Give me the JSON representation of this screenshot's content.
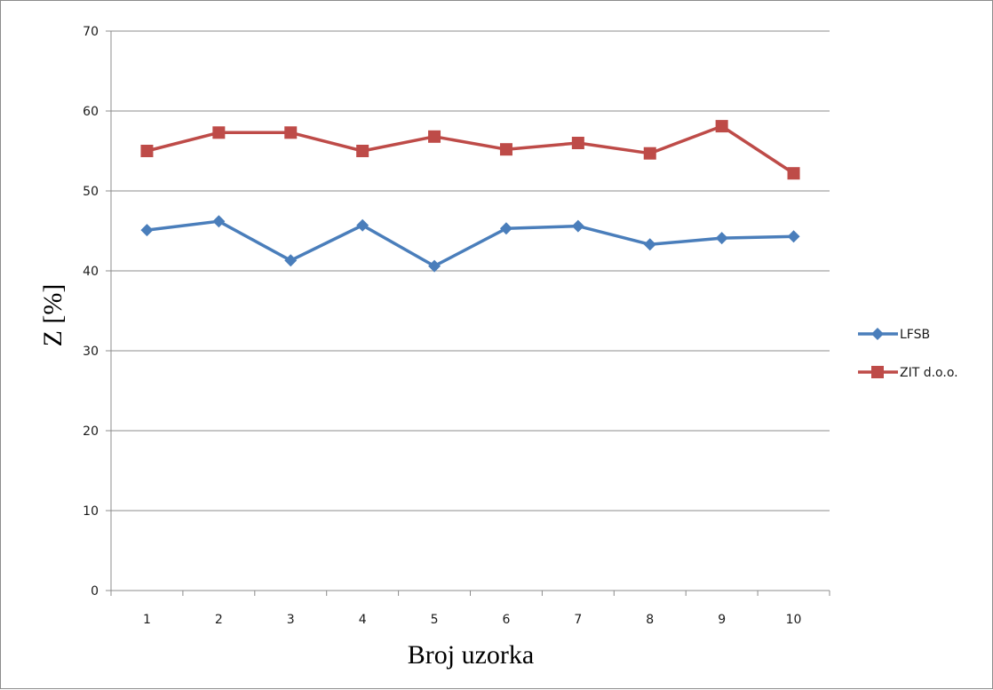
{
  "chart_data": {
    "type": "line",
    "title": "",
    "xlabel": "Broj uzorka",
    "ylabel": "Z [%]",
    "categories": [
      "1",
      "2",
      "3",
      "4",
      "5",
      "6",
      "7",
      "8",
      "9",
      "10"
    ],
    "ylim": [
      0,
      70
    ],
    "yticks": [
      0,
      10,
      20,
      30,
      40,
      50,
      60,
      70
    ],
    "grid": true,
    "legend_position": "right",
    "series": [
      {
        "name": "LFSB",
        "color": "#4a7ebb",
        "marker": "diamond",
        "values": [
          45.1,
          46.2,
          41.3,
          45.7,
          40.6,
          45.3,
          45.6,
          43.3,
          44.1,
          44.3
        ]
      },
      {
        "name": "ZIT d.o.o.",
        "color": "#be4b48",
        "marker": "square",
        "values": [
          55.0,
          57.3,
          57.3,
          55.0,
          56.8,
          55.2,
          56.0,
          54.7,
          58.1,
          52.2
        ]
      }
    ]
  }
}
